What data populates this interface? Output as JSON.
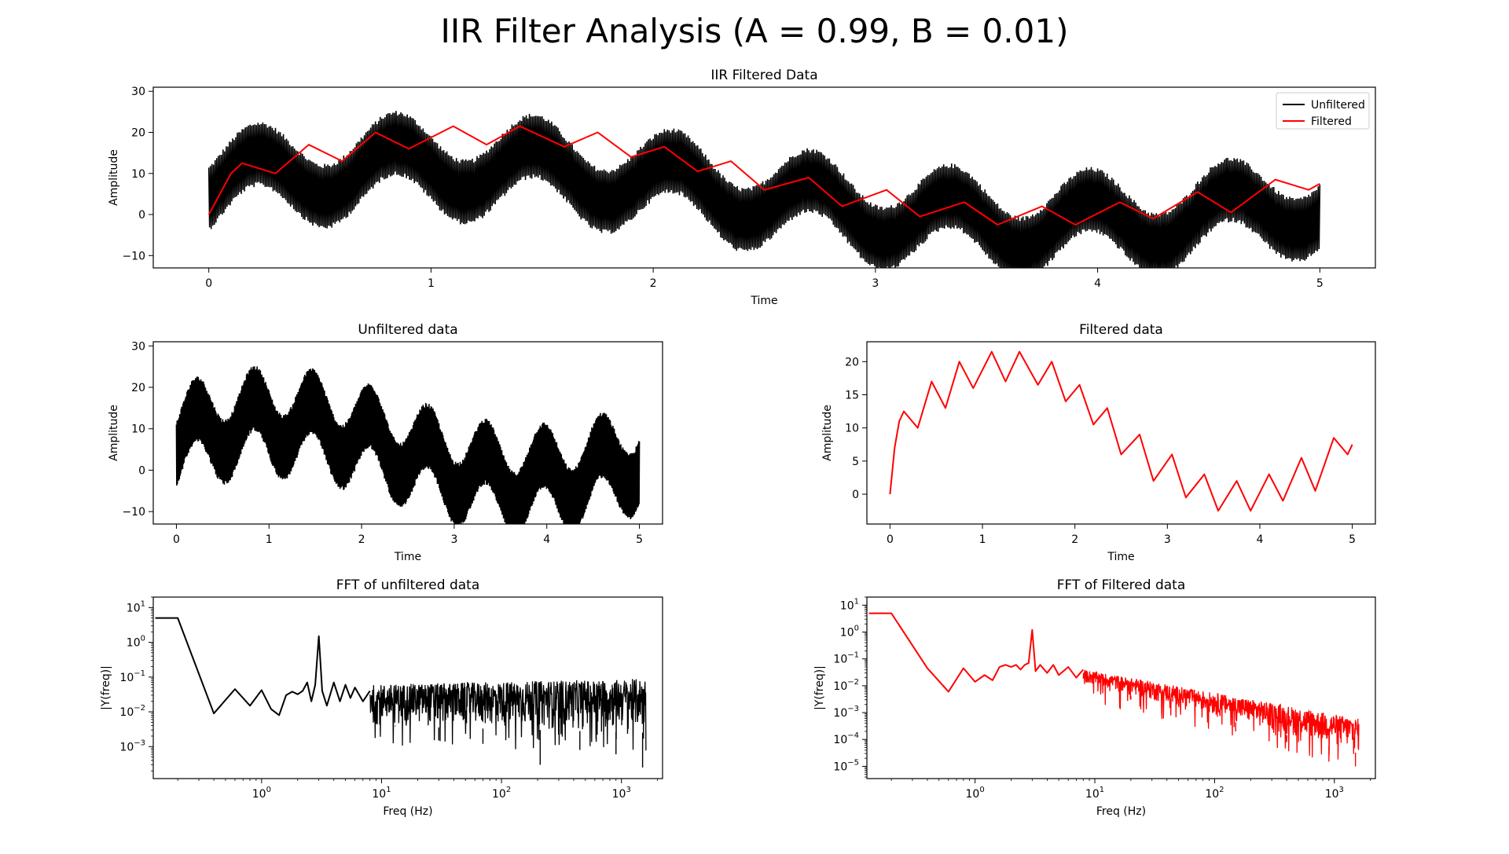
{
  "figure": {
    "title": "IIR Filter Analysis (A = 0.99, B = 0.01)"
  },
  "colors": {
    "unfiltered": "#000000",
    "filtered": "#ff0000",
    "axes": "#000000",
    "legend_border": "#cccccc"
  },
  "chart_data": [
    {
      "id": "combined",
      "type": "line",
      "title": "IIR Filtered Data",
      "xlabel": "Time",
      "ylabel": "Amplitude",
      "xlim": [
        -0.25,
        5.25
      ],
      "ylim": [
        -13,
        31
      ],
      "xticks": [
        0,
        1,
        2,
        3,
        4,
        5
      ],
      "yticks": [
        -10,
        0,
        10,
        20,
        30
      ],
      "xtick_labels": [
        "0",
        "1",
        "2",
        "3",
        "4",
        "5"
      ],
      "ytick_labels": [
        "−10",
        "0",
        "10",
        "20",
        "30"
      ],
      "legend": {
        "position": "top-right",
        "entries": [
          "Unfiltered",
          "Filtered"
        ]
      },
      "series": [
        {
          "name": "Unfiltered",
          "color": "#000000",
          "style": "band",
          "x": [
            0,
            5
          ],
          "center": [
            10,
            4
          ],
          "half_width": 8
        },
        {
          "name": "Filtered",
          "color": "#ff0000",
          "style": "line",
          "x": [
            0,
            0.1,
            0.15,
            0.3,
            0.45,
            0.6,
            0.75,
            0.9,
            1.1,
            1.25,
            1.4,
            1.6,
            1.75,
            1.9,
            2.05,
            2.2,
            2.35,
            2.5,
            2.7,
            2.85,
            3.05,
            3.2,
            3.4,
            3.55,
            3.75,
            3.9,
            4.1,
            4.25,
            4.45,
            4.6,
            4.8,
            4.95,
            5
          ],
          "y": [
            0,
            10,
            12.5,
            10,
            17,
            13,
            20,
            16,
            21.5,
            17,
            21.5,
            16.5,
            20,
            14,
            16.5,
            10.5,
            13,
            6,
            9,
            2,
            6,
            -0.5,
            3,
            -2.5,
            2,
            -2.5,
            3,
            -1,
            5.5,
            0.5,
            8.5,
            6,
            7.5
          ]
        }
      ]
    },
    {
      "id": "unfiltered",
      "type": "line",
      "title": "Unfiltered data",
      "xlabel": "Time",
      "ylabel": "Amplitude",
      "xlim": [
        -0.25,
        5.25
      ],
      "ylim": [
        -13,
        31
      ],
      "xticks": [
        0,
        1,
        2,
        3,
        4,
        5
      ],
      "yticks": [
        -10,
        0,
        10,
        20,
        30
      ],
      "xtick_labels": [
        "0",
        "1",
        "2",
        "3",
        "4",
        "5"
      ],
      "ytick_labels": [
        "−10",
        "0",
        "10",
        "20",
        "30"
      ],
      "series": [
        {
          "name": "",
          "color": "#000000",
          "style": "band",
          "x": [
            0,
            5
          ],
          "center": [
            10,
            4
          ],
          "half_width": 8
        }
      ]
    },
    {
      "id": "filtered",
      "type": "line",
      "title": "Filtered data",
      "xlabel": "Time",
      "ylabel": "Amplitude",
      "xlim": [
        -0.25,
        5.25
      ],
      "ylim": [
        -4.5,
        23
      ],
      "xticks": [
        0,
        1,
        2,
        3,
        4,
        5
      ],
      "yticks": [
        0,
        5,
        10,
        15,
        20
      ],
      "xtick_labels": [
        "0",
        "1",
        "2",
        "3",
        "4",
        "5"
      ],
      "ytick_labels": [
        "0",
        "5",
        "10",
        "15",
        "20"
      ],
      "series": [
        {
          "name": "",
          "color": "#ff0000",
          "style": "line",
          "x": [
            0,
            0.05,
            0.1,
            0.15,
            0.3,
            0.45,
            0.6,
            0.75,
            0.9,
            1.1,
            1.25,
            1.4,
            1.6,
            1.75,
            1.9,
            2.05,
            2.2,
            2.35,
            2.5,
            2.7,
            2.85,
            3.05,
            3.2,
            3.4,
            3.55,
            3.75,
            3.9,
            4.1,
            4.25,
            4.45,
            4.6,
            4.8,
            4.95,
            5
          ],
          "y": [
            0,
            7,
            11,
            12.5,
            10,
            17,
            13,
            20,
            16,
            21.5,
            17,
            21.5,
            16.5,
            20,
            14,
            16.5,
            10.5,
            13,
            6,
            9,
            2,
            6,
            -0.5,
            3,
            -2.5,
            2,
            -2.5,
            3,
            -1,
            5.5,
            0.5,
            8.5,
            6,
            7.5
          ]
        }
      ]
    },
    {
      "id": "fft_unfiltered",
      "type": "line",
      "title": "FFT of unfiltered data",
      "xlabel": "Freq (Hz)",
      "ylabel": "|Y(freq)|",
      "xscale": "log",
      "yscale": "log",
      "xlim": [
        0.125,
        2200
      ],
      "ylim": [
        0.00012,
        20
      ],
      "xticks": [
        1,
        10,
        100,
        1000
      ],
      "yticks": [
        0.001,
        0.01,
        0.1,
        1,
        10
      ],
      "xtick_labels": [
        "10^0",
        "10^1",
        "10^2",
        "10^3"
      ],
      "ytick_labels": [
        "10^-3",
        "10^-2",
        "10^-1",
        "10^0",
        "10^1"
      ],
      "series": [
        {
          "name": "",
          "color": "#000000",
          "style": "line",
          "x": [
            0.13,
            0.2,
            0.4,
            0.6,
            0.8,
            1.0,
            1.2,
            1.4,
            1.6,
            1.8,
            2.0,
            2.2,
            2.4,
            2.6,
            2.8,
            3.0,
            3.2,
            3.5,
            4.0,
            4.5,
            5.0,
            5.5,
            6.0,
            7.0,
            8.0
          ],
          "y": [
            5,
            5,
            0.009,
            0.045,
            0.015,
            0.042,
            0.012,
            0.008,
            0.03,
            0.038,
            0.032,
            0.04,
            0.07,
            0.02,
            0.06,
            1.5,
            0.04,
            0.015,
            0.07,
            0.02,
            0.06,
            0.025,
            0.05,
            0.02,
            0.04
          ]
        },
        {
          "name": "",
          "color": "#000000",
          "style": "noise",
          "x": [
            8,
            1600
          ],
          "top": [
            0.06,
            0.09
          ],
          "bottom": [
            0.004,
            0.0025
          ],
          "spikes": [
            [
              13,
              0.004
            ],
            [
              30,
              0.0015
            ],
            [
              70,
              0.0012
            ],
            [
              210,
              0.0003
            ],
            [
              450,
              0.0008
            ],
            [
              900,
              0.0006
            ],
            [
              1500,
              0.00025
            ]
          ]
        }
      ]
    },
    {
      "id": "fft_filtered",
      "type": "line",
      "title": "FFT of Filtered data",
      "xlabel": "Freq (Hz)",
      "ylabel": "|Y(freq)|",
      "xscale": "log",
      "yscale": "log",
      "xlim": [
        0.125,
        2200
      ],
      "ylim": [
        3.5e-06,
        20
      ],
      "xticks": [
        1,
        10,
        100,
        1000
      ],
      "yticks": [
        1e-05,
        0.0001,
        0.001,
        0.01,
        0.1,
        1,
        10
      ],
      "xtick_labels": [
        "10^0",
        "10^1",
        "10^2",
        "10^3"
      ],
      "ytick_labels": [
        "10^-5",
        "10^-4",
        "10^-3",
        "10^-2",
        "10^-1",
        "10^0",
        "10^1"
      ],
      "series": [
        {
          "name": "",
          "color": "#ff0000",
          "style": "line",
          "x": [
            0.13,
            0.2,
            0.4,
            0.6,
            0.8,
            1.0,
            1.2,
            1.4,
            1.6,
            1.8,
            2.0,
            2.2,
            2.4,
            2.6,
            2.8,
            3.0,
            3.2,
            3.5,
            4.0,
            4.5,
            5.0,
            6.0,
            7.0,
            8.0
          ],
          "y": [
            5,
            5,
            0.045,
            0.006,
            0.045,
            0.014,
            0.025,
            0.016,
            0.05,
            0.06,
            0.05,
            0.06,
            0.04,
            0.06,
            0.07,
            1.2,
            0.035,
            0.06,
            0.03,
            0.06,
            0.025,
            0.05,
            0.02,
            0.04
          ]
        },
        {
          "name": "",
          "color": "#ff0000",
          "style": "noise",
          "x": [
            8,
            1600
          ],
          "top": [
            0.04,
            0.0006
          ],
          "bottom": [
            0.012,
            3e-05
          ],
          "spikes": [
            [
              20,
              0.003
            ],
            [
              60,
              0.0012
            ],
            [
              150,
              0.0002
            ],
            [
              400,
              8e-05
            ],
            [
              900,
              1.5e-05
            ],
            [
              1500,
              1e-05
            ]
          ]
        }
      ]
    }
  ]
}
